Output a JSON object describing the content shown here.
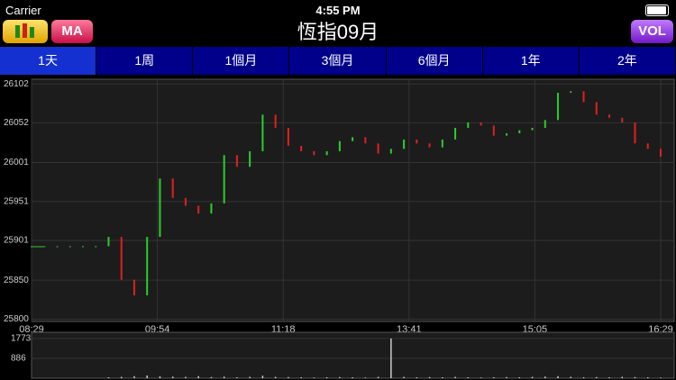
{
  "status": {
    "carrier": "Carrier",
    "time": "4:55 PM"
  },
  "header": {
    "ma_button": "MA",
    "title": "恆指09月",
    "vol_button": "VOL"
  },
  "tabs": [
    "1天",
    "1周",
    "1個月",
    "3個月",
    "6個月",
    "1年",
    "2年"
  ],
  "selected_tab": 0,
  "chart_data": {
    "type": "candlestick",
    "xticks": [
      "08:29",
      "09:54",
      "11:18",
      "13:41",
      "15:05",
      "16:29"
    ],
    "values": [
      25893,
      25893,
      25893,
      25893,
      25893,
      25893,
      25905,
      25850,
      25830,
      25905,
      25980,
      25955,
      25945,
      25935,
      25948,
      26010,
      25995,
      26015,
      26062,
      26045,
      26022,
      26015,
      26010,
      26015,
      26028,
      26033,
      26025,
      26012,
      26018,
      26030,
      26025,
      26020,
      26030,
      26045,
      26052,
      26048,
      26035,
      26038,
      26042,
      26045,
      26055,
      26090,
      26092,
      26078,
      26062,
      26058,
      26052,
      26025,
      26018,
      26008
    ],
    "ylim": [
      25797,
      26108
    ],
    "yticks": [
      26102,
      26052,
      26001,
      25951,
      25901,
      25850,
      25800
    ],
    "up_color": "#2ecc2e",
    "down_color": "#e02020",
    "volume": {
      "values": [
        0,
        0,
        0,
        0,
        0,
        0,
        40,
        60,
        90,
        120,
        80,
        70,
        60,
        90,
        50,
        70,
        40,
        60,
        110,
        60,
        50,
        40,
        30,
        40,
        50,
        40,
        30,
        60,
        1773,
        60,
        40,
        50,
        40,
        60,
        40,
        30,
        40,
        50,
        40,
        60,
        70,
        90,
        60,
        40,
        50,
        40,
        60,
        50,
        40,
        30
      ],
      "ylim": [
        0,
        1850
      ],
      "yticks": [
        1773,
        886
      ],
      "color": "#ccc"
    }
  }
}
